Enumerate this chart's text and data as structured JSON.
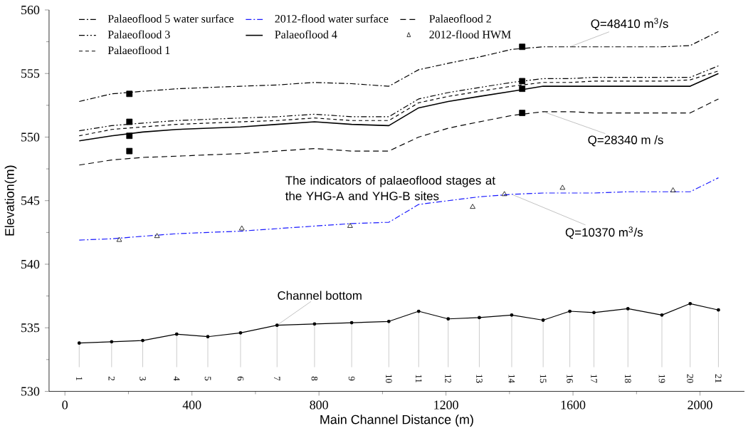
{
  "chart_data": {
    "type": "line",
    "xlabel": "Main Channel Distance (m)",
    "ylabel": "Elevation(m)",
    "x": [
      45,
      147,
      245,
      352,
      450,
      553,
      668,
      786,
      903,
      1020,
      1114,
      1207,
      1305,
      1407,
      1506,
      1590,
      1666,
      1773,
      1880,
      1969,
      2058
    ],
    "xlim": [
      -50,
      2140
    ],
    "xticks": [
      0,
      400,
      800,
      1200,
      1600,
      2000
    ],
    "ylim": [
      530,
      560
    ],
    "yticks": [
      530,
      535,
      540,
      545,
      550,
      555,
      560
    ],
    "legend": "top left",
    "series": [
      {
        "name": "Palaeoflood 5 water surface",
        "color": "#000000",
        "line_style": "dashdot",
        "values": [
          552.8,
          553.4,
          553.6,
          553.8,
          553.9,
          554.0,
          554.1,
          554.3,
          554.2,
          554.0,
          555.3,
          555.8,
          556.3,
          556.9,
          557.1,
          557.1,
          557.1,
          557.1,
          557.1,
          557.2,
          558.3
        ]
      },
      {
        "name": "2012-flood water surface",
        "color": "#1a1aff",
        "line_style": "dashdot",
        "values": [
          541.9,
          542.0,
          542.2,
          542.4,
          542.5,
          542.6,
          542.8,
          543.0,
          543.2,
          543.3,
          544.7,
          545.0,
          545.3,
          545.5,
          545.6,
          545.6,
          545.6,
          545.7,
          545.7,
          545.7,
          546.8
        ]
      },
      {
        "name": "Palaeoflood 2",
        "color": "#000000",
        "line_style": "dashed",
        "values": [
          547.8,
          548.2,
          548.4,
          548.5,
          548.6,
          548.7,
          548.9,
          549.1,
          548.9,
          548.9,
          550.0,
          550.7,
          551.2,
          551.7,
          552.0,
          552.0,
          551.9,
          551.9,
          551.9,
          551.9,
          553.0
        ]
      },
      {
        "name": "Palaeoflood 3",
        "color": "#000000",
        "line_style": "dashdotdot",
        "values": [
          550.5,
          550.9,
          551.1,
          551.3,
          551.4,
          551.5,
          551.6,
          551.8,
          551.6,
          551.6,
          553.0,
          553.5,
          553.9,
          554.3,
          554.6,
          554.6,
          554.7,
          554.7,
          554.7,
          554.7,
          555.6
        ]
      },
      {
        "name": "Palaeoflood 4",
        "color": "#000000",
        "line_style": "solid",
        "values": [
          549.7,
          550.1,
          550.4,
          550.6,
          550.7,
          550.8,
          551.0,
          551.2,
          551.0,
          550.9,
          552.3,
          552.8,
          553.2,
          553.6,
          554.0,
          554.0,
          554.0,
          554.0,
          554.0,
          554.0,
          555.0
        ]
      },
      {
        "name": "2012-flood HWM",
        "type": "scatter",
        "marker": "triangle",
        "color": "#000000",
        "x": [
          171,
          290,
          557,
          898,
          1284,
          1384,
          1567,
          1915
        ],
        "values": [
          541.9,
          542.2,
          542.8,
          543.0,
          544.5,
          545.5,
          546.0,
          545.8
        ]
      },
      {
        "name": "Palaeoflood 1",
        "color": "#000000",
        "line_style": "dotted",
        "values": [
          550.1,
          550.6,
          550.8,
          551.0,
          551.1,
          551.2,
          551.3,
          551.5,
          551.3,
          551.3,
          552.7,
          553.2,
          553.6,
          554.0,
          554.3,
          554.3,
          554.4,
          554.4,
          554.4,
          554.5,
          555.2
        ]
      },
      {
        "color": "#000000",
        "line_style": "solid",
        "marker": "circle",
        "values": [
          533.8,
          533.9,
          534.0,
          534.5,
          534.3,
          534.6,
          535.2,
          535.3,
          535.4,
          535.5,
          536.3,
          535.7,
          535.8,
          536.0,
          535.6,
          536.3,
          536.2,
          536.5,
          536.0,
          536.9,
          536.4
        ]
      },
      {
        "type": "scatter",
        "marker": "square",
        "color": "#000000",
        "x": [
          203,
          203,
          203,
          203,
          1440,
          1440,
          1440,
          1440
        ],
        "values": [
          553.4,
          551.2,
          550.1,
          548.9,
          557.1,
          554.4,
          553.8,
          551.9
        ]
      }
    ],
    "annotations": [
      {
        "text": "Q=48410 m$^{3}$/s",
        "x": 1590,
        "y": 557.1
      },
      {
        "text": "Q=28340 m /s",
        "x": 1506,
        "y": 552.0
      },
      {
        "text": "Q=10370 m$^{3}$/s",
        "x": 1407,
        "y": 545.5
      },
      "The indicators of palaeoflood stages at the YHG-A and YHG-B sites",
      {
        "text": "Channel bottom",
        "x": 668,
        "y": 535.2
      },
      {
        "text": "1",
        "x": 45,
        "y": 533.8
      },
      {
        "text": "2",
        "x": 147,
        "y": 533.9
      },
      {
        "text": "3",
        "x": 245,
        "y": 534.0
      },
      {
        "text": "4",
        "x": 352,
        "y": 534.5
      },
      {
        "text": "5",
        "x": 450,
        "y": 534.3
      },
      {
        "text": "6",
        "x": 553,
        "y": 534.6
      },
      {
        "text": "7",
        "x": 668,
        "y": 535.2
      },
      {
        "text": "8",
        "x": 786,
        "y": 535.3
      },
      {
        "text": "9",
        "x": 903,
        "y": 535.4
      },
      {
        "text": "10",
        "x": 1020,
        "y": 535.5
      },
      {
        "text": "11",
        "x": 1114,
        "y": 536.3
      },
      {
        "text": "12",
        "x": 1207,
        "y": 535.7
      },
      {
        "text": "13",
        "x": 1305,
        "y": 535.8
      },
      {
        "text": "14",
        "x": 1407,
        "y": 536.0
      },
      {
        "text": "15",
        "x": 1506,
        "y": 535.6
      },
      {
        "text": "16",
        "x": 1590,
        "y": 536.3
      },
      {
        "text": "17",
        "x": 1666,
        "y": 536.2
      },
      {
        "text": "18",
        "x": 1773,
        "y": 536.5
      },
      {
        "text": "19",
        "x": 1880,
        "y": 536.0
      },
      {
        "text": "20",
        "x": 1969,
        "y": 536.9
      },
      {
        "text": "21",
        "x": 2058,
        "y": 536.4
      }
    ]
  }
}
